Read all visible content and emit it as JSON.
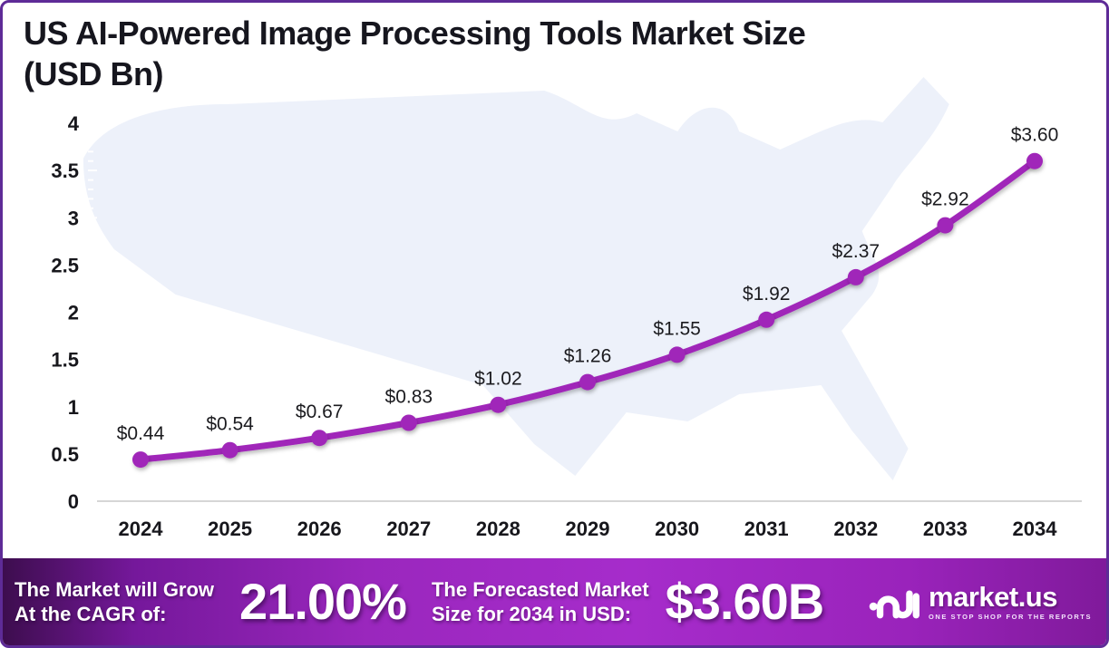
{
  "header": {
    "title_line1": "US AI-Powered Image Processing Tools Market Size",
    "title_line2": "(USD Bn)"
  },
  "chart_data": {
    "type": "line",
    "title": "US AI-Powered Image Processing Tools Market Size (USD Bn)",
    "categories": [
      "2024",
      "2025",
      "2026",
      "2027",
      "2028",
      "2029",
      "2030",
      "2031",
      "2032",
      "2033",
      "2034"
    ],
    "values": [
      0.44,
      0.54,
      0.67,
      0.83,
      1.02,
      1.26,
      1.55,
      1.92,
      2.37,
      2.92,
      3.6
    ],
    "point_labels": [
      "$0.44",
      "$0.54",
      "$0.67",
      "$0.83",
      "$1.02",
      "$1.26",
      "$1.55",
      "$1.92",
      "$2.37",
      "$2.92",
      "$3.60"
    ],
    "xlabel": "",
    "ylabel": "",
    "ylim": [
      0,
      4
    ],
    "y_ticks": [
      0,
      0.5,
      1,
      1.5,
      2,
      2.5,
      3,
      3.5,
      4
    ],
    "y_tick_labels": [
      "0",
      "0.5",
      "1",
      "1.5",
      "2",
      "2.5",
      "3",
      "3.5",
      "4"
    ],
    "grid": false,
    "legend": "none",
    "marker": "circle",
    "line_color": "#A028B9",
    "background": "faint USA map silhouette"
  },
  "banner": {
    "cagr_label_line1": "The Market will Grow",
    "cagr_label_line2": "At the CAGR of:",
    "cagr_value": "21.00%",
    "forecast_label_line1": "The Forecasted Market",
    "forecast_label_line2": "Size for 2034 in USD:",
    "forecast_value": "$3.60B",
    "brand_name": "market.us",
    "brand_tagline": "ONE STOP SHOP FOR THE REPORTS"
  },
  "colors": {
    "line": "#A028B9",
    "map_fill": "#EDF1FA",
    "frame_border": "#5E2B97",
    "banner_left": "#3D0D4E",
    "banner_mid": "#A62CCB",
    "banner_right": "#801A9B",
    "axis_text": "#17171C"
  }
}
